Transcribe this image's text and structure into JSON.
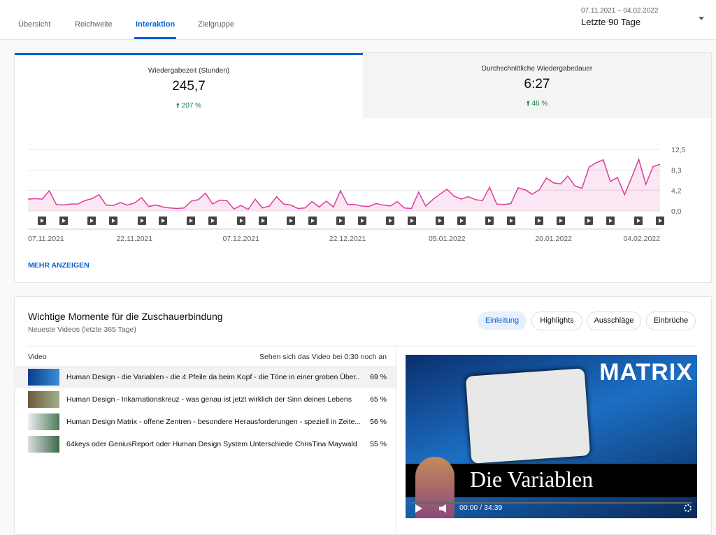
{
  "tabs": [
    "Übersicht",
    "Reichweite",
    "Interaktion",
    "Zielgruppe"
  ],
  "date_range": {
    "dates": "07.11.2021 – 04.02.2022",
    "label": "Letzte 90 Tage"
  },
  "metrics": [
    {
      "label": "Wiedergabezeit (Stunden)",
      "value": "245,7",
      "change": "207 %"
    },
    {
      "label": "Durchschnittliche Wiedergabedauer",
      "value": "6:27",
      "change": "46 %"
    }
  ],
  "chart_data": {
    "type": "line",
    "color": "#de3b9a",
    "grid": true,
    "categories": [
      "07.11.2021",
      null,
      null,
      null,
      null,
      null,
      null,
      null,
      null,
      null,
      null,
      null,
      null,
      null,
      null,
      "22.11.2021",
      null,
      null,
      null,
      null,
      null,
      null,
      null,
      null,
      null,
      null,
      null,
      null,
      null,
      null,
      "07.12.2021",
      null,
      null,
      null,
      null,
      null,
      null,
      null,
      null,
      null,
      null,
      null,
      null,
      null,
      null,
      "22.12.2021",
      null,
      null,
      null,
      null,
      null,
      null,
      null,
      null,
      null,
      null,
      null,
      null,
      null,
      "05.01.2022",
      null,
      null,
      null,
      null,
      null,
      null,
      null,
      null,
      null,
      null,
      null,
      null,
      null,
      null,
      "20.01.2022",
      null,
      null,
      null,
      null,
      null,
      null,
      null,
      null,
      null,
      null,
      null,
      null,
      null,
      null,
      "04.02.2022"
    ],
    "values": [
      2.4,
      2.5,
      2.4,
      4.1,
      1.3,
      1.2,
      1.4,
      1.4,
      2.1,
      2.5,
      3.3,
      1.2,
      1.1,
      1.7,
      1.2,
      1.6,
      2.7,
      0.9,
      1.2,
      0.8,
      0.6,
      0.5,
      0.6,
      2.0,
      2.3,
      3.6,
      1.4,
      2.2,
      2.1,
      0.4,
      1.1,
      0.3,
      2.4,
      0.6,
      1.0,
      2.9,
      1.4,
      1.2,
      0.5,
      0.6,
      1.9,
      0.8,
      2.0,
      0.8,
      4.1,
      1.3,
      1.3,
      1.0,
      0.9,
      1.5,
      1.2,
      1.0,
      1.9,
      0.6,
      0.5,
      3.8,
      1.0,
      2.3,
      3.4,
      4.4,
      3.0,
      2.4,
      2.9,
      2.3,
      2.1,
      4.8,
      1.4,
      1.3,
      1.5,
      4.7,
      4.3,
      3.4,
      4.3,
      6.7,
      5.7,
      5.5,
      7.1,
      5.1,
      4.6,
      8.9,
      9.8,
      10.4,
      6.0,
      6.8,
      3.3,
      6.8,
      10.5,
      5.4,
      9.0,
      9.5
    ],
    "ylim": [
      0,
      12.5
    ],
    "yticks": [
      {
        "value": 0,
        "label": "0,0"
      },
      {
        "value": 4.2,
        "label": "4,2"
      },
      {
        "value": 8.3,
        "label": "8,3"
      },
      {
        "value": 12.5,
        "label": "12,5"
      }
    ]
  },
  "more_link": "MEHR ANZEIGEN",
  "moments": {
    "title": "Wichtige Momente für die Zuschauerbindung",
    "subtitle": "Neueste Videos (letzte 365 Tage)",
    "filters": [
      "Einleitung",
      "Highlights",
      "Ausschläge",
      "Einbrüche"
    ],
    "table": {
      "headers": [
        "Video",
        "Sehen sich das Video bei 0:30 noch an"
      ],
      "rows": [
        [
          "Human Design - die Variablen - die 4 Pfeile da beim Kopf - die Töne in einer groben Über...",
          "69 %"
        ],
        [
          "Human Design - Inkarnationskreuz - was genau ist jetzt wirklich der Sinn deines Lebens",
          "65 %"
        ],
        [
          "Human Design Matrix - offene Zentren - besondere Herausforderungen - speziell in Zeite...",
          "56 %"
        ],
        [
          "64keys oder GeniusReport oder Human Design System Unterschiede ChrisTina Maywald",
          "55 %"
        ]
      ]
    },
    "player": {
      "brand": "MATRIX",
      "overlay_title": "Die Variablen",
      "time": "00:00 / 34:39"
    }
  }
}
